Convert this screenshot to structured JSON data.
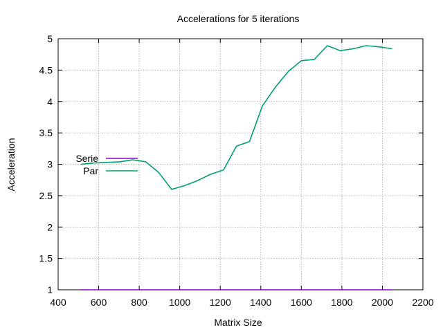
{
  "chart_data": {
    "type": "line",
    "title": "Accelerations for 5 iterations",
    "xlabel": "Matrix Size",
    "ylabel": "Acceleration",
    "xlim": [
      400,
      2200
    ],
    "ylim": [
      1,
      5
    ],
    "xticks": [
      400,
      600,
      800,
      1000,
      1200,
      1400,
      1600,
      1800,
      2000,
      2200
    ],
    "yticks": [
      1,
      1.5,
      2,
      2.5,
      3,
      3.5,
      4,
      4.5,
      5
    ],
    "xtick_labels": [
      "400",
      "600",
      "800",
      "1000",
      "1200",
      "1400",
      "1600",
      "1800",
      "2000",
      "2200"
    ],
    "ytick_labels": [
      "1",
      "1.5",
      "2",
      "2.5",
      "3",
      "3.5",
      "4",
      "4.5",
      "5"
    ],
    "grid": true,
    "legend_position": "left",
    "series": [
      {
        "name": "Serie",
        "color": "#9400d3",
        "x": [
          512,
          576,
          640,
          704,
          768,
          832,
          896,
          960,
          1024,
          1088,
          1152,
          1216,
          1280,
          1344,
          1408,
          1472,
          1536,
          1600,
          1664,
          1728,
          1792,
          1856,
          1920,
          1984,
          2048
        ],
        "y": [
          1,
          1,
          1,
          1,
          1,
          1,
          1,
          1,
          1,
          1,
          1,
          1,
          1,
          1,
          1,
          1,
          1,
          1,
          1,
          1,
          1,
          1,
          1,
          1,
          1
        ]
      },
      {
        "name": "Par",
        "color": "#009e73",
        "x": [
          512,
          576,
          640,
          704,
          768,
          832,
          896,
          960,
          1024,
          1088,
          1152,
          1216,
          1280,
          1344,
          1408,
          1472,
          1536,
          1600,
          1664,
          1728,
          1792,
          1856,
          1920,
          1984,
          2048
        ],
        "y": [
          3.0,
          3.02,
          3.03,
          3.04,
          3.07,
          3.04,
          2.87,
          2.6,
          2.66,
          2.74,
          2.84,
          2.91,
          3.29,
          3.36,
          3.93,
          4.23,
          4.48,
          4.65,
          4.67,
          4.89,
          4.81,
          4.84,
          4.89,
          4.87,
          4.84
        ]
      }
    ]
  }
}
